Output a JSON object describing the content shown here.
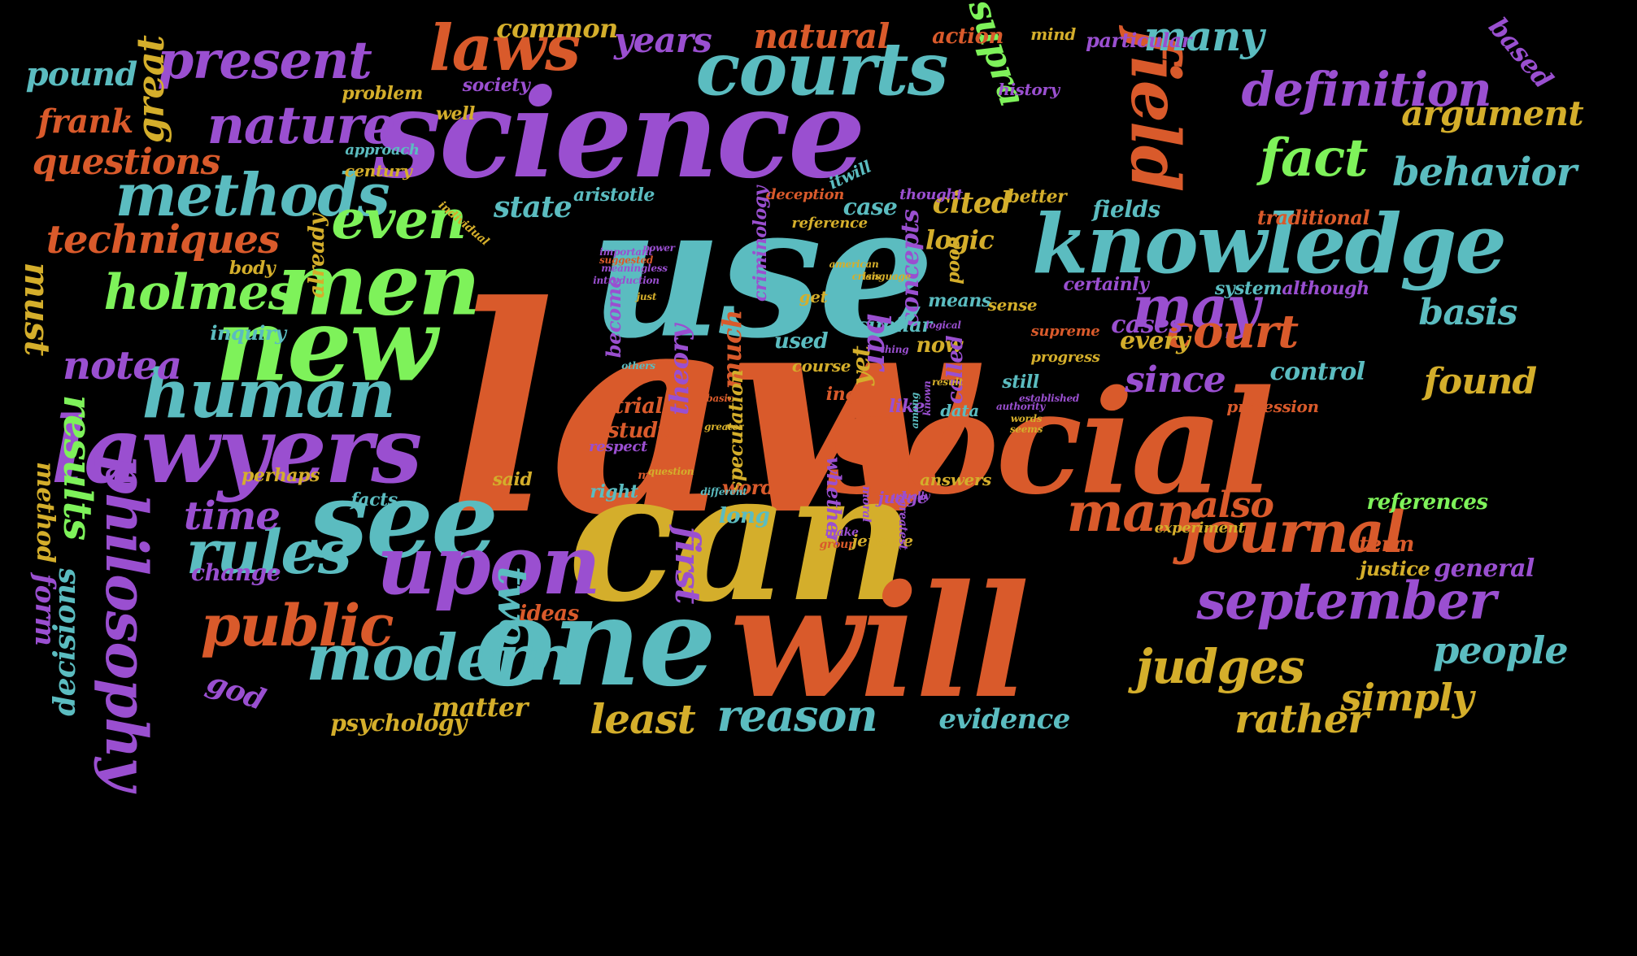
{
  "palette": {
    "background": "#000000",
    "orange": "#d95a2b",
    "purple": "#9a4fd0",
    "teal": "#5bbcc0",
    "gold": "#d4ae2b",
    "green": "#7ef25a"
  },
  "words": [
    {
      "text": "law",
      "color": "orange"
    },
    {
      "text": "use",
      "color": "teal"
    },
    {
      "text": "can",
      "color": "gold"
    },
    {
      "text": "science",
      "color": "purple"
    },
    {
      "text": "social",
      "color": "orange"
    },
    {
      "text": "will",
      "color": "orange"
    },
    {
      "text": "one",
      "color": "teal"
    },
    {
      "text": "see",
      "color": "teal"
    },
    {
      "text": "new",
      "color": "green"
    },
    {
      "text": "lawyers",
      "color": "purple"
    },
    {
      "text": "men",
      "color": "green"
    },
    {
      "text": "knowledge",
      "color": "teal"
    },
    {
      "text": "upon",
      "color": "purple"
    },
    {
      "text": "courts",
      "color": "teal"
    },
    {
      "text": "field",
      "color": "orange"
    },
    {
      "text": "human",
      "color": "teal"
    },
    {
      "text": "modern",
      "color": "teal"
    },
    {
      "text": "laws",
      "color": "orange"
    },
    {
      "text": "philosophy",
      "color": "purple"
    },
    {
      "text": "journal",
      "color": "orange"
    },
    {
      "text": "september",
      "color": "purple"
    },
    {
      "text": "public",
      "color": "orange"
    },
    {
      "text": "rules",
      "color": "teal"
    },
    {
      "text": "methods",
      "color": "teal"
    },
    {
      "text": "nature",
      "color": "purple"
    },
    {
      "text": "present",
      "color": "purple"
    },
    {
      "text": "holmes",
      "color": "green"
    },
    {
      "text": "even",
      "color": "green"
    },
    {
      "text": "may",
      "color": "purple"
    },
    {
      "text": "court",
      "color": "orange"
    },
    {
      "text": "fact",
      "color": "green"
    },
    {
      "text": "definition",
      "color": "purple"
    },
    {
      "text": "man",
      "color": "orange"
    },
    {
      "text": "judges",
      "color": "gold"
    },
    {
      "text": "results",
      "color": "green"
    },
    {
      "text": "techniques",
      "color": "orange"
    },
    {
      "text": "questions",
      "color": "orange"
    },
    {
      "text": "notea",
      "color": "purple"
    },
    {
      "text": "since",
      "color": "purple"
    },
    {
      "text": "time",
      "color": "purple"
    },
    {
      "text": "two",
      "color": "teal"
    },
    {
      "text": "reason",
      "color": "teal"
    },
    {
      "text": "least",
      "color": "gold"
    },
    {
      "text": "rather",
      "color": "gold"
    },
    {
      "text": "simply",
      "color": "gold"
    },
    {
      "text": "people",
      "color": "teal"
    },
    {
      "text": "behavior",
      "color": "teal"
    },
    {
      "text": "argument",
      "color": "gold"
    },
    {
      "text": "basis",
      "color": "teal"
    },
    {
      "text": "found",
      "color": "gold"
    },
    {
      "text": "also",
      "color": "orange"
    },
    {
      "text": "first",
      "color": "purple"
    },
    {
      "text": "supra",
      "color": "green"
    },
    {
      "text": "years",
      "color": "purple"
    },
    {
      "text": "natural",
      "color": "orange"
    },
    {
      "text": "many",
      "color": "teal"
    },
    {
      "text": "great",
      "color": "gold"
    },
    {
      "text": "frank",
      "color": "orange"
    },
    {
      "text": "pound",
      "color": "teal"
    },
    {
      "text": "must",
      "color": "gold"
    },
    {
      "text": "decisions",
      "color": "teal"
    },
    {
      "text": "god",
      "color": "purple"
    },
    {
      "text": "form",
      "color": "purple"
    },
    {
      "text": "method",
      "color": "gold"
    },
    {
      "text": "common",
      "color": "gold"
    },
    {
      "text": "action",
      "color": "orange"
    },
    {
      "text": "mind",
      "color": "gold"
    },
    {
      "text": "particular",
      "color": "purple"
    },
    {
      "text": "based",
      "color": "purple"
    },
    {
      "text": "state",
      "color": "teal"
    },
    {
      "text": "cited",
      "color": "gold"
    },
    {
      "text": "case",
      "color": "teal"
    },
    {
      "text": "logic",
      "color": "gold"
    },
    {
      "text": "fields",
      "color": "teal"
    },
    {
      "text": "traditional",
      "color": "orange"
    },
    {
      "text": "every",
      "color": "gold"
    },
    {
      "text": "control",
      "color": "teal"
    },
    {
      "text": "cases",
      "color": "purple"
    },
    {
      "text": "references",
      "color": "green"
    },
    {
      "text": "term",
      "color": "orange"
    },
    {
      "text": "general",
      "color": "purple"
    },
    {
      "text": "justice",
      "color": "gold"
    },
    {
      "text": "evidence",
      "color": "teal"
    },
    {
      "text": "psychology",
      "color": "gold"
    },
    {
      "text": "matter",
      "color": "gold"
    },
    {
      "text": "ideas",
      "color": "orange"
    },
    {
      "text": "change",
      "color": "purple"
    },
    {
      "text": "already",
      "color": "gold"
    },
    {
      "text": "body",
      "color": "gold"
    },
    {
      "text": "inquiry",
      "color": "teal"
    },
    {
      "text": "problem",
      "color": "gold"
    },
    {
      "text": "society",
      "color": "purple"
    },
    {
      "text": "well",
      "color": "gold"
    },
    {
      "text": "history",
      "color": "purple"
    },
    {
      "text": "approach",
      "color": "teal"
    },
    {
      "text": "century",
      "color": "gold"
    },
    {
      "text": "aristotle",
      "color": "teal"
    },
    {
      "text": "said",
      "color": "gold"
    },
    {
      "text": "deception",
      "color": "orange"
    },
    {
      "text": "thought",
      "color": "purple"
    },
    {
      "text": "better",
      "color": "gold"
    },
    {
      "text": "reference",
      "color": "gold"
    },
    {
      "text": "criminology",
      "color": "purple"
    },
    {
      "text": "concepts",
      "color": "purple"
    },
    {
      "text": "good",
      "color": "gold"
    },
    {
      "text": "certainly",
      "color": "purple"
    },
    {
      "text": "system",
      "color": "teal"
    },
    {
      "text": "although",
      "color": "purple"
    },
    {
      "text": "means",
      "color": "teal"
    },
    {
      "text": "get",
      "color": "gold"
    },
    {
      "text": "sense",
      "color": "gold"
    },
    {
      "text": "supreme",
      "color": "orange"
    },
    {
      "text": "progress",
      "color": "gold"
    },
    {
      "text": "still",
      "color": "teal"
    },
    {
      "text": "now",
      "color": "gold"
    },
    {
      "text": "called",
      "color": "purple"
    },
    {
      "text": "similar",
      "color": "teal"
    },
    {
      "text": "profession",
      "color": "orange"
    },
    {
      "text": "much",
      "color": "orange"
    },
    {
      "text": "become",
      "color": "purple"
    },
    {
      "text": "theory",
      "color": "purple"
    },
    {
      "text": "yet",
      "color": "gold"
    },
    {
      "text": "bar",
      "color": "purple"
    },
    {
      "text": "used",
      "color": "teal"
    },
    {
      "text": "course",
      "color": "gold"
    },
    {
      "text": "ing",
      "color": "orange"
    },
    {
      "text": "like",
      "color": "purple"
    },
    {
      "text": "speculation",
      "color": "gold"
    },
    {
      "text": "study",
      "color": "orange"
    },
    {
      "text": "trial",
      "color": "orange"
    },
    {
      "text": "respect",
      "color": "purple"
    },
    {
      "text": "perhaps",
      "color": "gold"
    },
    {
      "text": "facts",
      "color": "teal"
    },
    {
      "text": "right",
      "color": "teal"
    },
    {
      "text": "word",
      "color": "orange"
    },
    {
      "text": "long",
      "color": "teal"
    },
    {
      "text": "whether",
      "color": "purple"
    },
    {
      "text": "made",
      "color": "orange"
    },
    {
      "text": "make",
      "color": "purple"
    },
    {
      "text": "group",
      "color": "orange"
    },
    {
      "text": "jerome",
      "color": "gold"
    },
    {
      "text": "judge",
      "color": "purple"
    },
    {
      "text": "answers",
      "color": "gold"
    },
    {
      "text": "greatest",
      "color": "purple"
    },
    {
      "text": "experiment",
      "color": "gold"
    },
    {
      "text": "data",
      "color": "teal"
    },
    {
      "text": "moral",
      "color": "purple"
    },
    {
      "text": "itwill",
      "color": "teal"
    },
    {
      "text": "individual",
      "color": "gold"
    },
    {
      "text": "question",
      "color": "gold"
    },
    {
      "text": "different",
      "color": "teal"
    },
    {
      "text": "greater",
      "color": "gold"
    },
    {
      "text": "introduction",
      "color": "purple"
    },
    {
      "text": "meaningless",
      "color": "purple"
    },
    {
      "text": "important",
      "color": "purple"
    },
    {
      "text": "suggested",
      "color": "orange"
    },
    {
      "text": "others",
      "color": "teal"
    },
    {
      "text": "just",
      "color": "gold"
    },
    {
      "text": "language",
      "color": "gold"
    },
    {
      "text": "logical",
      "color": "purple"
    },
    {
      "text": "result",
      "color": "gold"
    },
    {
      "text": "thing",
      "color": "purple"
    },
    {
      "text": "power",
      "color": "purple"
    },
    {
      "text": "american",
      "color": "gold"
    },
    {
      "text": "authority",
      "color": "purple"
    },
    {
      "text": "words",
      "color": "gold"
    },
    {
      "text": "seems",
      "color": "gold"
    },
    {
      "text": "established",
      "color": "purple"
    },
    {
      "text": "among",
      "color": "teal"
    },
    {
      "text": "known",
      "color": "purple"
    },
    {
      "text": "usually",
      "color": "purple"
    },
    {
      "text": "basic",
      "color": "orange"
    },
    {
      "text": "crisis",
      "color": "gold"
    }
  ]
}
